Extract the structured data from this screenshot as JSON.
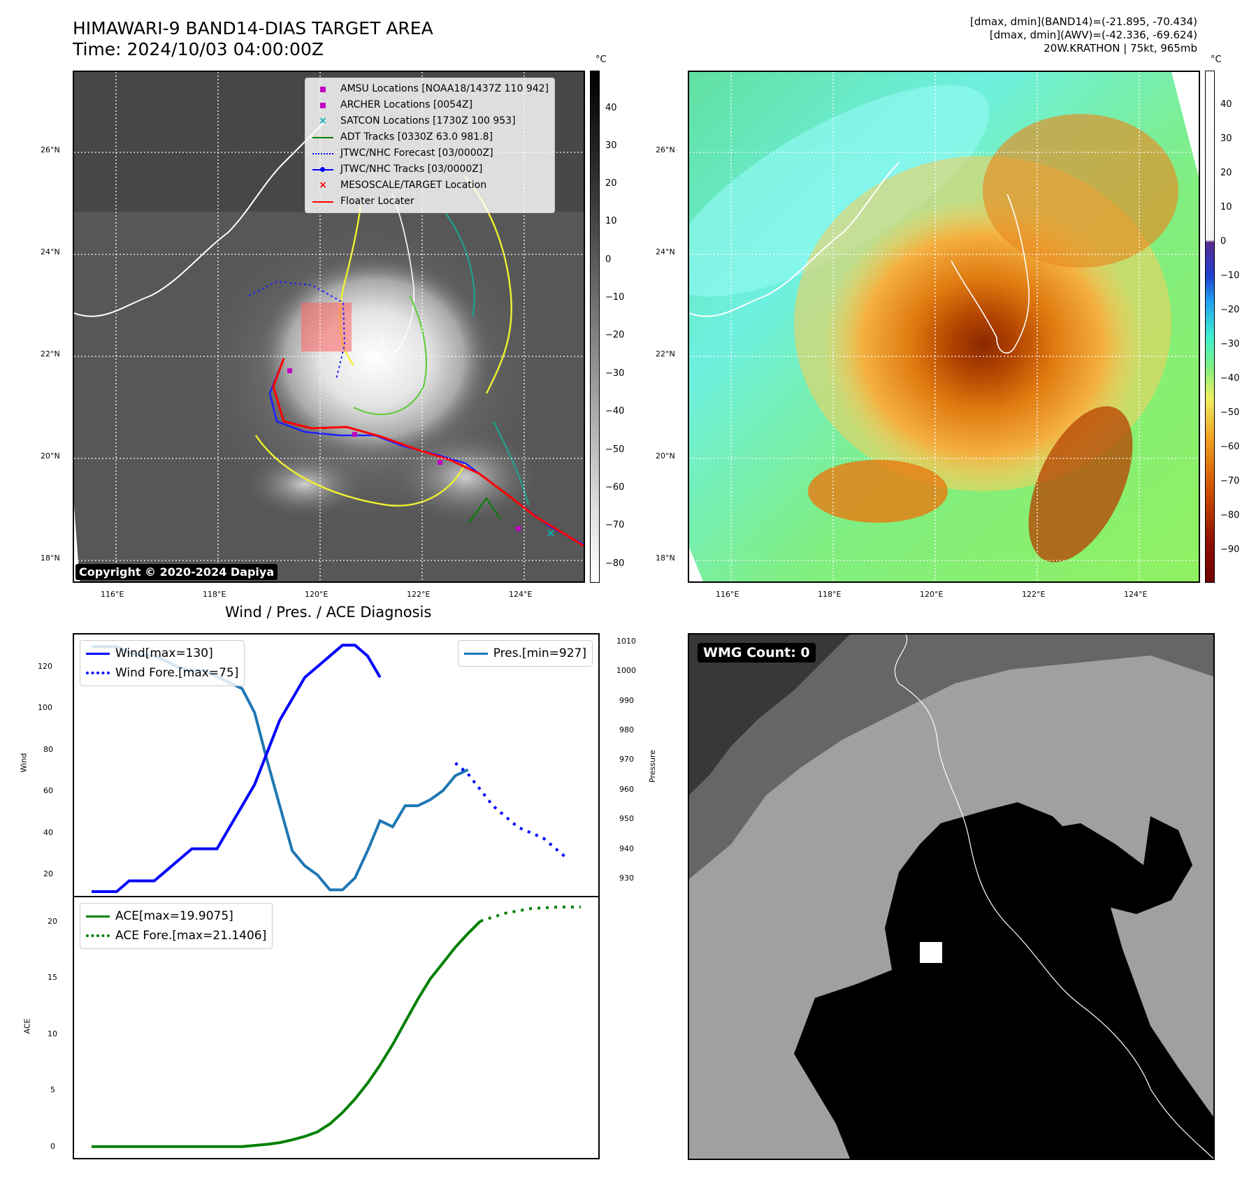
{
  "header": {
    "title_line1": "HIMAWARI-9 BAND14-DIAS TARGET AREA",
    "title_line2": "Time: 2024/10/03 04:00:00Z",
    "info_line1": "[dmax, dmin](BAND14)=(-21.895, -70.434)",
    "info_line2": "[dmax, dmin](AWV)=(-42.336, -69.624)",
    "info_line3": "20W.KRATHON | 75kt, 965mb"
  },
  "ir_map": {
    "copyright": "Copyright © 2020-2024 Dapiya",
    "lat_ticks": [
      "26°N",
      "24°N",
      "22°N",
      "20°N",
      "18°N"
    ],
    "lon_ticks": [
      "116°E",
      "118°E",
      "120°E",
      "122°E",
      "124°E"
    ],
    "colorbar_unit": "°C",
    "colorbar_ticks": [
      "40",
      "30",
      "20",
      "10",
      "0",
      "−10",
      "−20",
      "−30",
      "−40",
      "−50",
      "−60",
      "−70",
      "−80"
    ],
    "legend": [
      {
        "label": "AMSU Locations [NOAA18/1437Z 110 942]",
        "marker": "square",
        "color": "#c000c0"
      },
      {
        "label": "ARCHER Locations [0054Z]",
        "marker": "square",
        "color": "#c000c0"
      },
      {
        "label": "SATCON Locations [1730Z 100 953]",
        "marker": "x",
        "color": "#00b0b0"
      },
      {
        "label": "ADT Tracks [0330Z 63.0 981.8]",
        "marker": "line",
        "color": "#008000"
      },
      {
        "label": "JTWC/NHC Forecast [03/0000Z]",
        "marker": "dotted",
        "color": "#0000ff"
      },
      {
        "label": "JTWC/NHC Tracks [03/0000Z]",
        "marker": "line-dot",
        "color": "#0000ff"
      },
      {
        "label": "MESOSCALE/TARGET Location",
        "marker": "x",
        "color": "#ff0000"
      },
      {
        "label": "Floater Locater",
        "marker": "line",
        "color": "#ff0000"
      }
    ]
  },
  "awv_map": {
    "lat_ticks": [
      "26°N",
      "24°N",
      "22°N",
      "20°N",
      "18°N"
    ],
    "lon_ticks": [
      "116°E",
      "118°E",
      "120°E",
      "122°E",
      "124°E"
    ],
    "colorbar_unit": "°C",
    "colorbar_ticks": [
      "40",
      "30",
      "20",
      "10",
      "0",
      "−10",
      "−20",
      "−30",
      "−40",
      "−50",
      "−60",
      "−70",
      "−80",
      "−90"
    ]
  },
  "diagnosis": {
    "title": "Wind / Pres. / ACE Diagnosis",
    "wind_ylabel": "Wind",
    "pres_ylabel": "Pressure",
    "ace_ylabel": "ACE",
    "wind_legend": "Wind[max=130]",
    "wind_fore_legend": "Wind Fore.[max=75]",
    "pres_legend": "Pres.[min=927]",
    "ace_legend": "ACE[max=19.9075]",
    "ace_fore_legend": "ACE Fore.[max=21.1406]",
    "wind_ticks": [
      "120",
      "100",
      "80",
      "60",
      "40",
      "20"
    ],
    "pres_ticks": [
      "1010",
      "1000",
      "990",
      "980",
      "970",
      "960",
      "950",
      "940",
      "930"
    ],
    "ace_ticks": [
      "20",
      "15",
      "10",
      "5",
      "0"
    ]
  },
  "wmg": {
    "label": "WMG Count: 0"
  },
  "chart_data": [
    {
      "type": "line",
      "title": "Wind / Pres. / ACE Diagnosis",
      "ylabel": "Wind",
      "ylim": [
        13,
        135
      ],
      "series": [
        {
          "name": "Wind[max=130]",
          "axis": "left",
          "color": "#0000ff",
          "style": "solid",
          "x": [
            0,
            1,
            2,
            3,
            4,
            5,
            6,
            7,
            8,
            9,
            10,
            11,
            12,
            13,
            14,
            15,
            16,
            17,
            18,
            19,
            20,
            21,
            22,
            23
          ],
          "values": [
            15,
            15,
            15,
            20,
            20,
            20,
            25,
            30,
            35,
            35,
            35,
            45,
            55,
            65,
            80,
            95,
            105,
            115,
            120,
            125,
            130,
            130,
            125,
            115
          ]
        },
        {
          "name": "Wind Fore.[max=75]",
          "axis": "left",
          "color": "#0000ff",
          "style": "dotted",
          "x": [
            29,
            30,
            32,
            34,
            36,
            38
          ],
          "values": [
            75,
            70,
            55,
            45,
            40,
            30
          ]
        }
      ]
    },
    {
      "type": "line",
      "ylabel": "Pressure",
      "ylim": [
        925,
        1012
      ],
      "series": [
        {
          "name": "Pres.[min=927]",
          "axis": "right",
          "color": "#1f77b4",
          "style": "solid",
          "x": [
            0,
            1,
            2,
            3,
            4,
            5,
            6,
            7,
            8,
            9,
            10,
            11,
            12,
            13,
            14,
            15,
            16,
            17,
            18,
            19,
            20,
            21,
            22,
            23,
            24,
            25,
            26,
            27,
            28,
            29,
            30
          ],
          "values": [
            1008,
            1008,
            1008,
            1006,
            1005,
            1005,
            1003,
            1001,
            1000,
            1000,
            998,
            996,
            994,
            986,
            970,
            955,
            940,
            935,
            932,
            927,
            927,
            931,
            940,
            950,
            948,
            955,
            955,
            957,
            960,
            965,
            967
          ]
        }
      ]
    },
    {
      "type": "line",
      "ylabel": "ACE",
      "ylim": [
        -1,
        22
      ],
      "series": [
        {
          "name": "ACE[max=19.9075]",
          "color": "#008000",
          "style": "solid",
          "x": [
            0,
            2,
            4,
            6,
            8,
            10,
            12,
            14,
            15,
            16,
            17,
            18,
            19,
            20,
            21,
            22,
            23,
            24,
            25,
            26,
            27,
            28,
            29,
            30,
            31
          ],
          "values": [
            0,
            0,
            0,
            0,
            0,
            0,
            0,
            0.2,
            0.35,
            0.6,
            0.9,
            1.3,
            2.0,
            3.0,
            4.2,
            5.6,
            7.2,
            9.0,
            11.0,
            13.0,
            14.8,
            16.2,
            17.6,
            18.8,
            19.9
          ]
        },
        {
          "name": "ACE Fore.[max=21.1406]",
          "color": "#008000",
          "style": "dotted",
          "x": [
            31,
            33,
            35,
            37,
            39
          ],
          "values": [
            19.9,
            20.6,
            21.0,
            21.13,
            21.14
          ]
        }
      ]
    }
  ]
}
